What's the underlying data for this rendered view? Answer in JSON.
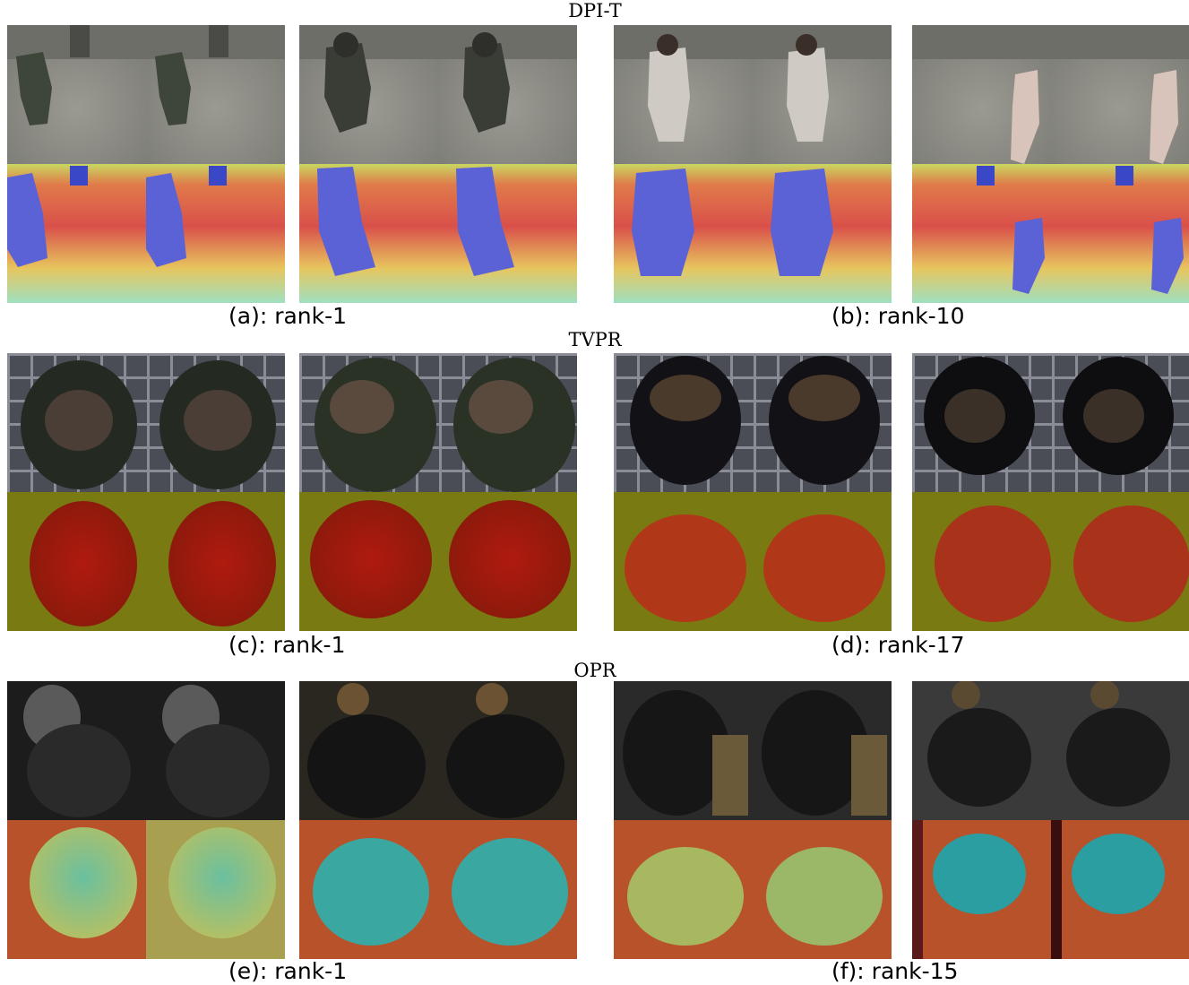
{
  "sections": [
    {
      "title": "DPI-T",
      "captions": [
        "(a): rank-1",
        "(b): rank-10"
      ]
    },
    {
      "title": "TVPR",
      "captions": [
        "(c): rank-1",
        "(d): rank-17"
      ]
    },
    {
      "title": "OPR",
      "captions": [
        "(e): rank-1",
        "(f): rank-15"
      ]
    }
  ],
  "colors": {
    "background": "#ffffff",
    "dpit_rgb_floor": "#8a8a82",
    "dpit_depth_warm": "#d9504a",
    "dpit_depth_person": "#5a62d6",
    "tvpr_rgb_bg": "#3a3c44",
    "tvpr_depth_bg": "#7a7a12",
    "tvpr_depth_person": "#9a1a10",
    "opr_rgb_bg": "#1c1c1c",
    "opr_depth_bg": "#b8522a",
    "opr_depth_person": "#3aa8a0"
  }
}
